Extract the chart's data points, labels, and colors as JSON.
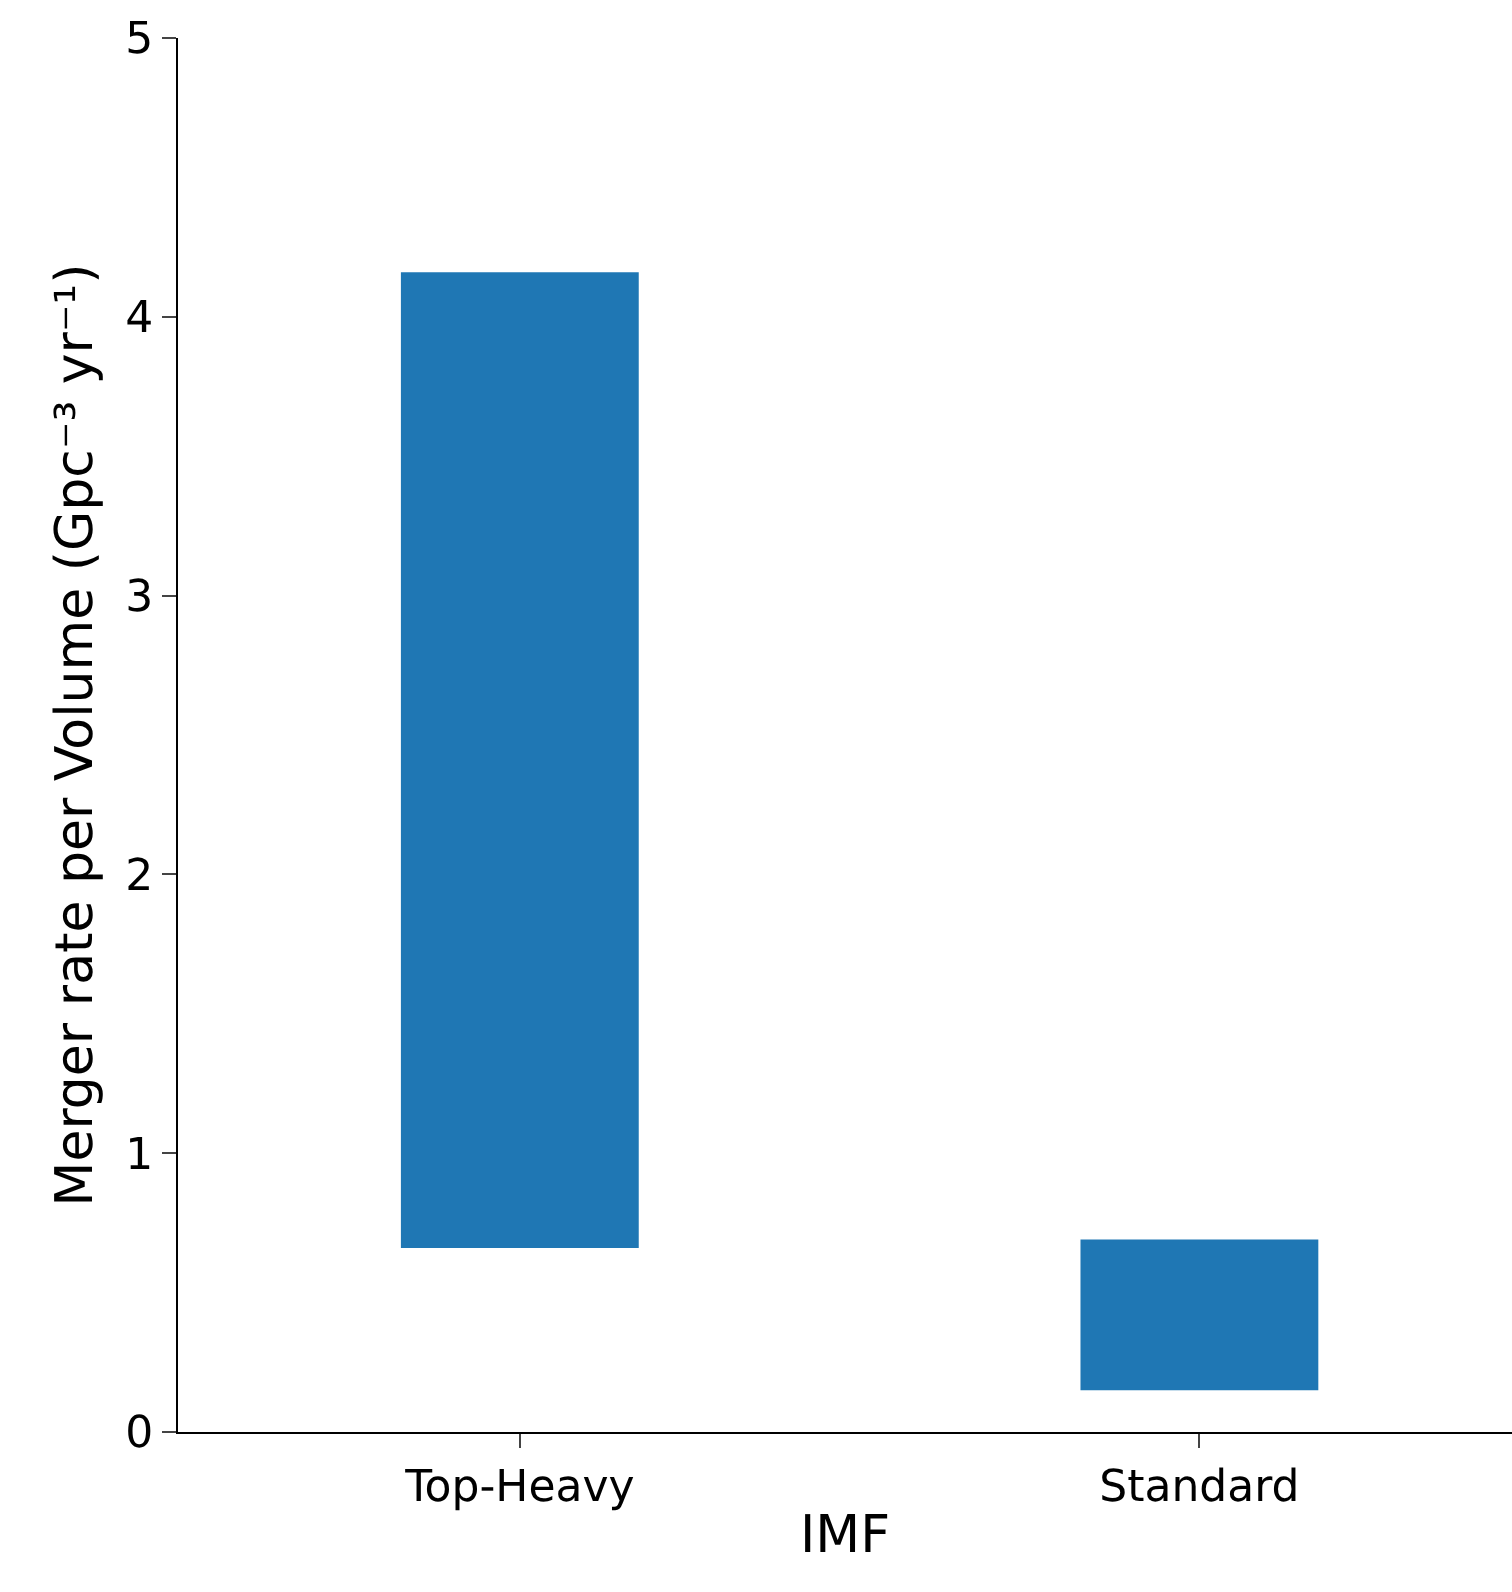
{
  "chart_data": {
    "type": "bar",
    "xlabel": "IMF",
    "ylabel": "Merger rate per Volume (Gpc⁻³ yr⁻¹)",
    "categories": [
      "Top-Heavy",
      "Standard"
    ],
    "values": [
      3.5,
      0.54
    ],
    "base": [
      0.66,
      0.15
    ],
    "color": "#1f77b4",
    "ylim": [
      0,
      5
    ],
    "yticks": [
      0,
      1,
      2,
      3,
      4,
      5
    ],
    "legend": false
  }
}
